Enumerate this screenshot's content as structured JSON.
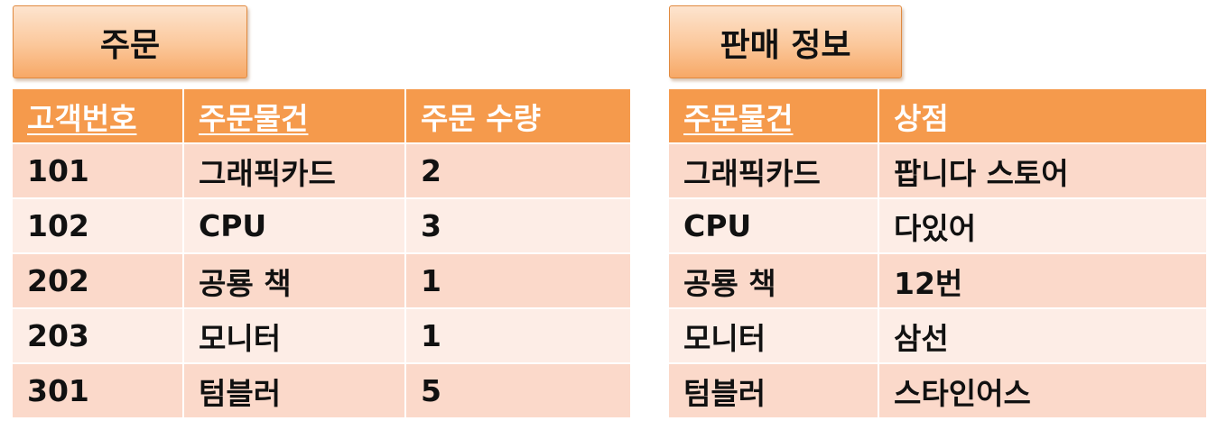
{
  "order": {
    "label": "주문",
    "headers": [
      "고객번호",
      "주문물건",
      "주문 수량"
    ],
    "rows": [
      [
        "101",
        "그래픽카드",
        "2"
      ],
      [
        "102",
        "CPU",
        "3"
      ],
      [
        "202",
        "공룡 책",
        "1"
      ],
      [
        "203",
        "모니터",
        "1"
      ],
      [
        "301",
        "텀블러",
        "5"
      ]
    ]
  },
  "sales": {
    "label": "판매 정보",
    "headers": [
      "주문물건",
      "상점"
    ],
    "rows": [
      [
        "그래픽카드",
        "팝니다 스토어"
      ],
      [
        "CPU",
        "다있어"
      ],
      [
        "공룡 책",
        "12번"
      ],
      [
        "모니터",
        "삼선"
      ],
      [
        "텀블러",
        "스타인어스"
      ]
    ]
  },
  "colors": {
    "header_fill": "#f59a4c",
    "row_odd": "#fbd9ca",
    "row_even": "#fdede6",
    "label_gradient_top": "#fde4cf",
    "label_gradient_bottom": "#f7a866"
  }
}
